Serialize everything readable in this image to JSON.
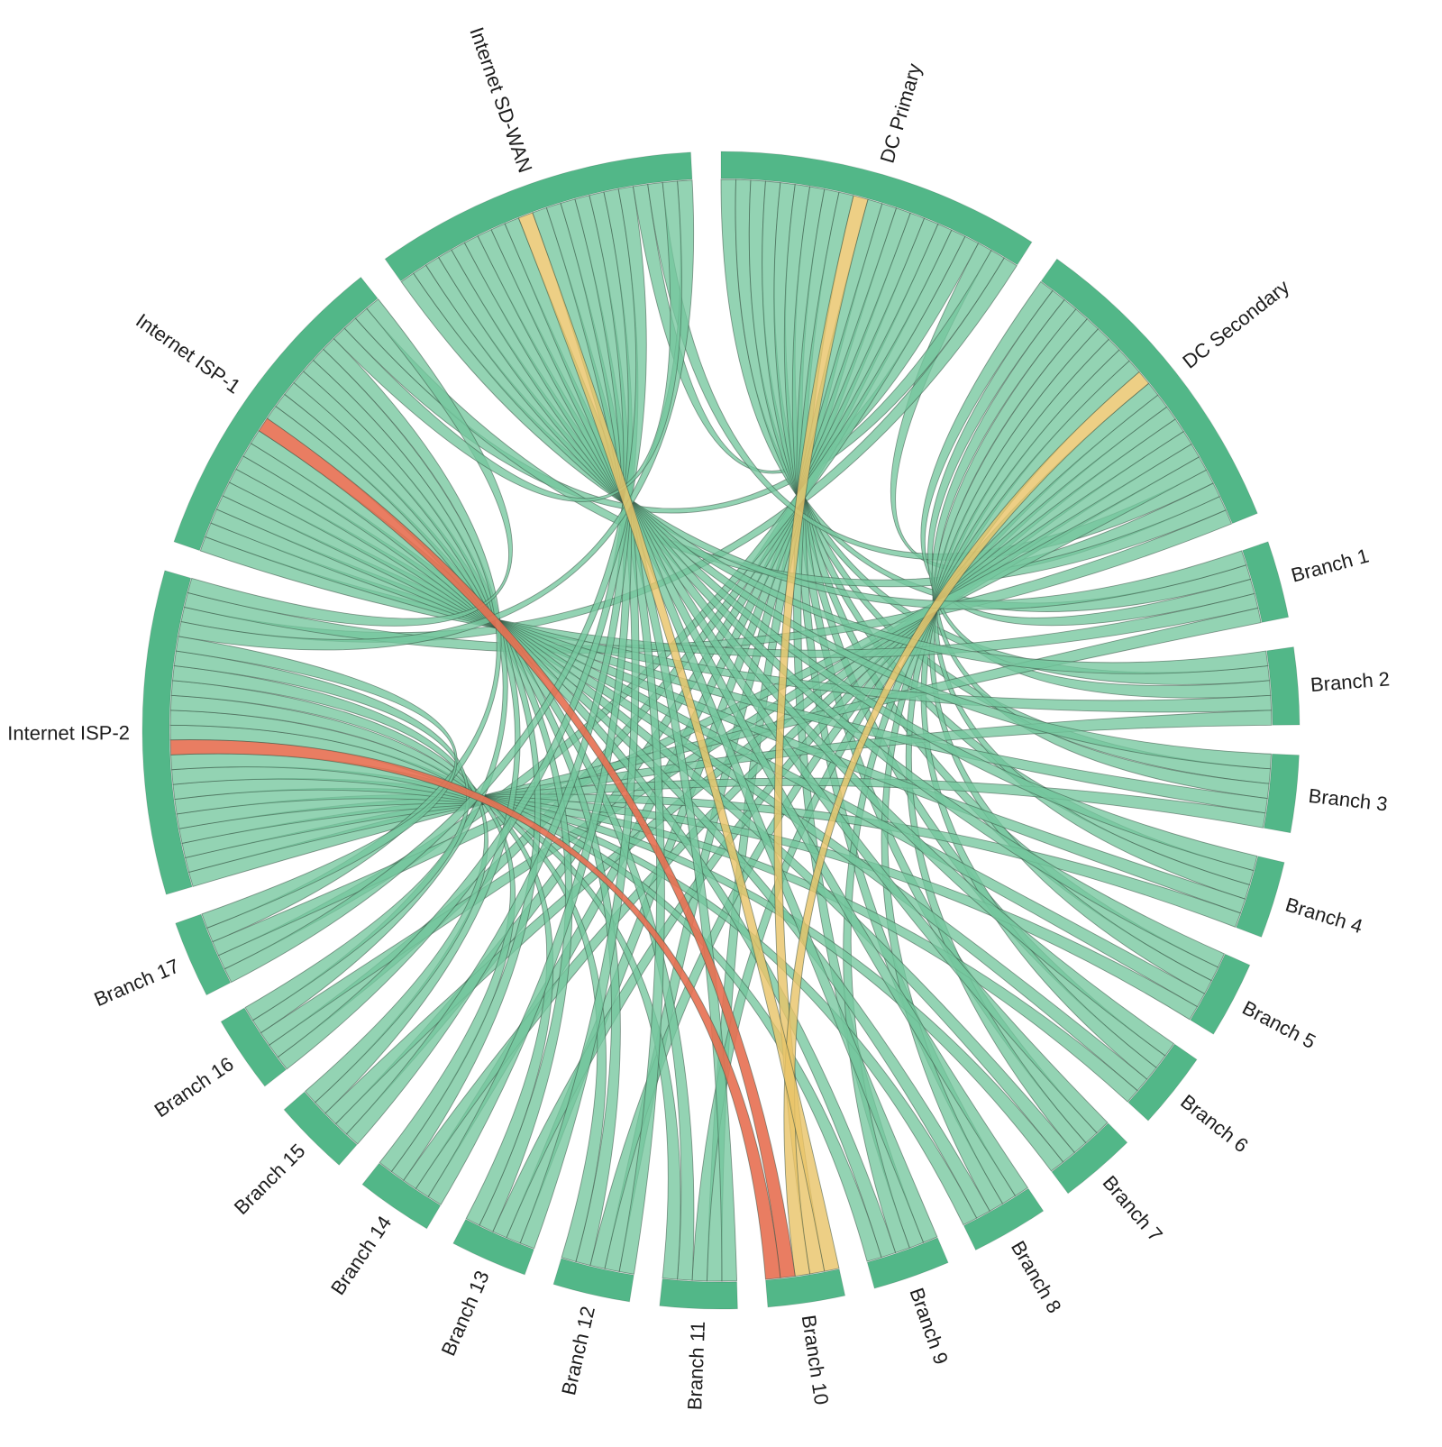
{
  "chart_data": {
    "type": "chord",
    "description": "Network connectivity chord diagram: hub sites (SD-WAN, data centers, ISPs) interconnected and linked to 17 branches; link color shows health status",
    "legend": false,
    "grid": false,
    "arc_color": "#52b788",
    "label_color": "#1d1d1d",
    "status_styles": {
      "ok": {
        "color": "#74c69d",
        "opacity": 0.78
      },
      "degraded": {
        "color": "#e9c46a",
        "opacity": 0.82
      },
      "critical": {
        "color": "#e76f51",
        "opacity": 0.9
      }
    },
    "subband_hub_order": [
      "Internet SD-WAN",
      "DC Primary",
      "DC Secondary",
      "Internet ISP-1",
      "Internet ISP-2"
    ],
    "nodes": [
      {
        "name": "DC Primary",
        "kind": "hub"
      },
      {
        "name": "DC Secondary",
        "kind": "hub"
      },
      {
        "name": "Branch 1",
        "kind": "branch"
      },
      {
        "name": "Branch 2",
        "kind": "branch"
      },
      {
        "name": "Branch 3",
        "kind": "branch"
      },
      {
        "name": "Branch 4",
        "kind": "branch"
      },
      {
        "name": "Branch 5",
        "kind": "branch"
      },
      {
        "name": "Branch 6",
        "kind": "branch"
      },
      {
        "name": "Branch 7",
        "kind": "branch"
      },
      {
        "name": "Branch 8",
        "kind": "branch"
      },
      {
        "name": "Branch 9",
        "kind": "branch"
      },
      {
        "name": "Branch 10",
        "kind": "branch"
      },
      {
        "name": "Branch 11",
        "kind": "branch"
      },
      {
        "name": "Branch 12",
        "kind": "branch"
      },
      {
        "name": "Branch 13",
        "kind": "branch"
      },
      {
        "name": "Branch 14",
        "kind": "branch"
      },
      {
        "name": "Branch 15",
        "kind": "branch"
      },
      {
        "name": "Branch 16",
        "kind": "branch"
      },
      {
        "name": "Branch 17",
        "kind": "branch"
      },
      {
        "name": "Internet ISP-2",
        "kind": "hub"
      },
      {
        "name": "Internet ISP-1",
        "kind": "hub"
      },
      {
        "name": "Internet SD-WAN",
        "kind": "hub"
      }
    ],
    "links": [
      [
        "DC Primary",
        "DC Secondary",
        "ok"
      ],
      [
        "DC Primary",
        "Internet ISP-2",
        "ok"
      ],
      [
        "DC Primary",
        "Internet ISP-1",
        "ok"
      ],
      [
        "DC Primary",
        "Internet SD-WAN",
        "ok"
      ],
      [
        "DC Secondary",
        "Internet ISP-2",
        "ok"
      ],
      [
        "DC Secondary",
        "Internet ISP-1",
        "ok"
      ],
      [
        "DC Secondary",
        "Internet SD-WAN",
        "ok"
      ],
      [
        "Internet ISP-2",
        "Internet ISP-1",
        "ok"
      ],
      [
        "Internet ISP-2",
        "Internet SD-WAN",
        "ok"
      ],
      [
        "Internet ISP-1",
        "Internet SD-WAN",
        "ok"
      ],
      [
        "Internet SD-WAN",
        "Branch 1",
        "ok"
      ],
      [
        "Internet SD-WAN",
        "Branch 2",
        "ok"
      ],
      [
        "Internet SD-WAN",
        "Branch 3",
        "ok"
      ],
      [
        "Internet SD-WAN",
        "Branch 4",
        "ok"
      ],
      [
        "Internet SD-WAN",
        "Branch 5",
        "ok"
      ],
      [
        "Internet SD-WAN",
        "Branch 6",
        "ok"
      ],
      [
        "Internet SD-WAN",
        "Branch 7",
        "ok"
      ],
      [
        "Internet SD-WAN",
        "Branch 8",
        "ok"
      ],
      [
        "Internet SD-WAN",
        "Branch 9",
        "ok"
      ],
      [
        "Internet SD-WAN",
        "Branch 10",
        "degraded"
      ],
      [
        "Internet SD-WAN",
        "Branch 11",
        "ok"
      ],
      [
        "Internet SD-WAN",
        "Branch 12",
        "ok"
      ],
      [
        "Internet SD-WAN",
        "Branch 13",
        "ok"
      ],
      [
        "Internet SD-WAN",
        "Branch 14",
        "ok"
      ],
      [
        "Internet SD-WAN",
        "Branch 15",
        "ok"
      ],
      [
        "Internet SD-WAN",
        "Branch 16",
        "ok"
      ],
      [
        "Internet SD-WAN",
        "Branch 17",
        "ok"
      ],
      [
        "DC Primary",
        "Branch 1",
        "ok"
      ],
      [
        "DC Primary",
        "Branch 2",
        "ok"
      ],
      [
        "DC Primary",
        "Branch 3",
        "ok"
      ],
      [
        "DC Primary",
        "Branch 4",
        "ok"
      ],
      [
        "DC Primary",
        "Branch 5",
        "ok"
      ],
      [
        "DC Primary",
        "Branch 6",
        "ok"
      ],
      [
        "DC Primary",
        "Branch 7",
        "ok"
      ],
      [
        "DC Primary",
        "Branch 8",
        "ok"
      ],
      [
        "DC Primary",
        "Branch 9",
        "ok"
      ],
      [
        "DC Primary",
        "Branch 10",
        "degraded"
      ],
      [
        "DC Primary",
        "Branch 11",
        "ok"
      ],
      [
        "DC Primary",
        "Branch 12",
        "ok"
      ],
      [
        "DC Primary",
        "Branch 13",
        "ok"
      ],
      [
        "DC Primary",
        "Branch 14",
        "ok"
      ],
      [
        "DC Primary",
        "Branch 15",
        "ok"
      ],
      [
        "DC Primary",
        "Branch 16",
        "ok"
      ],
      [
        "DC Primary",
        "Branch 17",
        "ok"
      ],
      [
        "DC Secondary",
        "Branch 1",
        "ok"
      ],
      [
        "DC Secondary",
        "Branch 2",
        "ok"
      ],
      [
        "DC Secondary",
        "Branch 3",
        "ok"
      ],
      [
        "DC Secondary",
        "Branch 4",
        "ok"
      ],
      [
        "DC Secondary",
        "Branch 5",
        "ok"
      ],
      [
        "DC Secondary",
        "Branch 6",
        "ok"
      ],
      [
        "DC Secondary",
        "Branch 7",
        "ok"
      ],
      [
        "DC Secondary",
        "Branch 8",
        "ok"
      ],
      [
        "DC Secondary",
        "Branch 9",
        "ok"
      ],
      [
        "DC Secondary",
        "Branch 10",
        "degraded"
      ],
      [
        "DC Secondary",
        "Branch 11",
        "ok"
      ],
      [
        "DC Secondary",
        "Branch 12",
        "ok"
      ],
      [
        "DC Secondary",
        "Branch 13",
        "ok"
      ],
      [
        "DC Secondary",
        "Branch 14",
        "ok"
      ],
      [
        "DC Secondary",
        "Branch 15",
        "ok"
      ],
      [
        "DC Secondary",
        "Branch 16",
        "ok"
      ],
      [
        "DC Secondary",
        "Branch 17",
        "ok"
      ],
      [
        "Internet ISP-1",
        "Branch 1",
        "ok"
      ],
      [
        "Internet ISP-1",
        "Branch 2",
        "ok"
      ],
      [
        "Internet ISP-1",
        "Branch 3",
        "ok"
      ],
      [
        "Internet ISP-1",
        "Branch 4",
        "ok"
      ],
      [
        "Internet ISP-1",
        "Branch 5",
        "ok"
      ],
      [
        "Internet ISP-1",
        "Branch 6",
        "ok"
      ],
      [
        "Internet ISP-1",
        "Branch 7",
        "ok"
      ],
      [
        "Internet ISP-1",
        "Branch 8",
        "ok"
      ],
      [
        "Internet ISP-1",
        "Branch 9",
        "ok"
      ],
      [
        "Internet ISP-1",
        "Branch 10",
        "critical"
      ],
      [
        "Internet ISP-1",
        "Branch 11",
        "ok"
      ],
      [
        "Internet ISP-1",
        "Branch 12",
        "ok"
      ],
      [
        "Internet ISP-1",
        "Branch 13",
        "ok"
      ],
      [
        "Internet ISP-1",
        "Branch 14",
        "ok"
      ],
      [
        "Internet ISP-1",
        "Branch 15",
        "ok"
      ],
      [
        "Internet ISP-1",
        "Branch 16",
        "ok"
      ],
      [
        "Internet ISP-1",
        "Branch 17",
        "ok"
      ],
      [
        "Internet ISP-2",
        "Branch 1",
        "ok"
      ],
      [
        "Internet ISP-2",
        "Branch 2",
        "ok"
      ],
      [
        "Internet ISP-2",
        "Branch 3",
        "ok"
      ],
      [
        "Internet ISP-2",
        "Branch 4",
        "ok"
      ],
      [
        "Internet ISP-2",
        "Branch 5",
        "ok"
      ],
      [
        "Internet ISP-2",
        "Branch 6",
        "ok"
      ],
      [
        "Internet ISP-2",
        "Branch 7",
        "ok"
      ],
      [
        "Internet ISP-2",
        "Branch 8",
        "ok"
      ],
      [
        "Internet ISP-2",
        "Branch 9",
        "ok"
      ],
      [
        "Internet ISP-2",
        "Branch 10",
        "critical"
      ],
      [
        "Internet ISP-2",
        "Branch 11",
        "ok"
      ],
      [
        "Internet ISP-2",
        "Branch 12",
        "ok"
      ],
      [
        "Internet ISP-2",
        "Branch 13",
        "ok"
      ],
      [
        "Internet ISP-2",
        "Branch 14",
        "ok"
      ],
      [
        "Internet ISP-2",
        "Branch 15",
        "ok"
      ],
      [
        "Internet ISP-2",
        "Branch 16",
        "ok"
      ],
      [
        "Internet ISP-2",
        "Branch 17",
        "ok"
      ]
    ]
  }
}
